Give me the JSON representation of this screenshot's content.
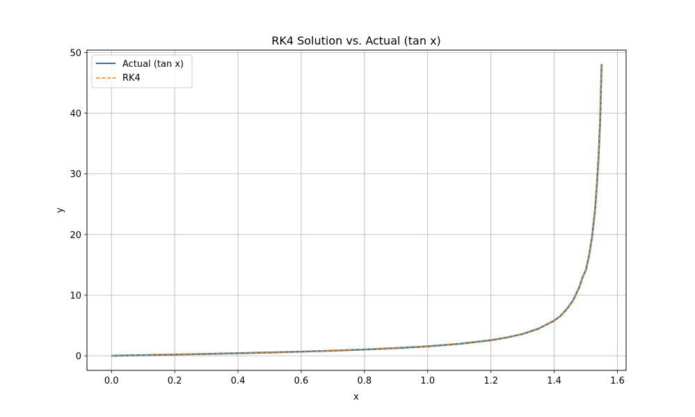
{
  "chart_data": {
    "type": "line",
    "title": "RK4 Solution vs. Actual (tan x)",
    "xlabel": "x",
    "ylabel": "y",
    "xlim": [
      -0.0775,
      1.6275
    ],
    "ylim": [
      -2.4,
      50.4
    ],
    "xticks": [
      0.0,
      0.2,
      0.4,
      0.6,
      0.8,
      1.0,
      1.2,
      1.4,
      1.6
    ],
    "xtick_labels": [
      "0.0",
      "0.2",
      "0.4",
      "0.6",
      "0.8",
      "1.0",
      "1.2",
      "1.4",
      "1.6"
    ],
    "yticks": [
      0,
      10,
      20,
      30,
      40,
      50
    ],
    "ytick_labels": [
      "0",
      "10",
      "20",
      "30",
      "40",
      "50"
    ],
    "grid": true,
    "legend_position": "top-left",
    "x": [
      0.0,
      0.1,
      0.2,
      0.3,
      0.4,
      0.5,
      0.6,
      0.7,
      0.8,
      0.9,
      1.0,
      1.1,
      1.2,
      1.25,
      1.3,
      1.35,
      1.4,
      1.42,
      1.44,
      1.46,
      1.48,
      1.49,
      1.5,
      1.51,
      1.52,
      1.53,
      1.535,
      1.54,
      1.545,
      1.55
    ],
    "series": [
      {
        "name": "Actual (tan x)",
        "color": "#1f77b4",
        "style": "solid",
        "y": [
          0.0,
          0.1003,
          0.2027,
          0.3093,
          0.4228,
          0.5463,
          0.6841,
          0.8423,
          1.0296,
          1.2602,
          1.5574,
          1.9648,
          2.5722,
          3.0096,
          3.6021,
          4.4552,
          5.7979,
          6.5811,
          7.6966,
          9.1601,
          11.3849,
          12.9845,
          14.1014,
          16.4281,
          19.6695,
          24.4984,
          28.2408,
          32.4611,
          38.2016,
          48.0785
        ]
      },
      {
        "name": "RK4",
        "color": "#ff7f0e",
        "style": "dashed",
        "y": [
          0.0,
          0.1003,
          0.2027,
          0.3093,
          0.4228,
          0.5463,
          0.6841,
          0.8423,
          1.0296,
          1.2602,
          1.5574,
          1.9648,
          2.5722,
          3.0096,
          3.6021,
          4.4552,
          5.7979,
          6.5811,
          7.6966,
          9.1601,
          11.3849,
          12.9845,
          14.1014,
          16.4281,
          19.6695,
          24.4984,
          28.2408,
          32.4611,
          38.2016,
          48.0785
        ]
      }
    ]
  }
}
